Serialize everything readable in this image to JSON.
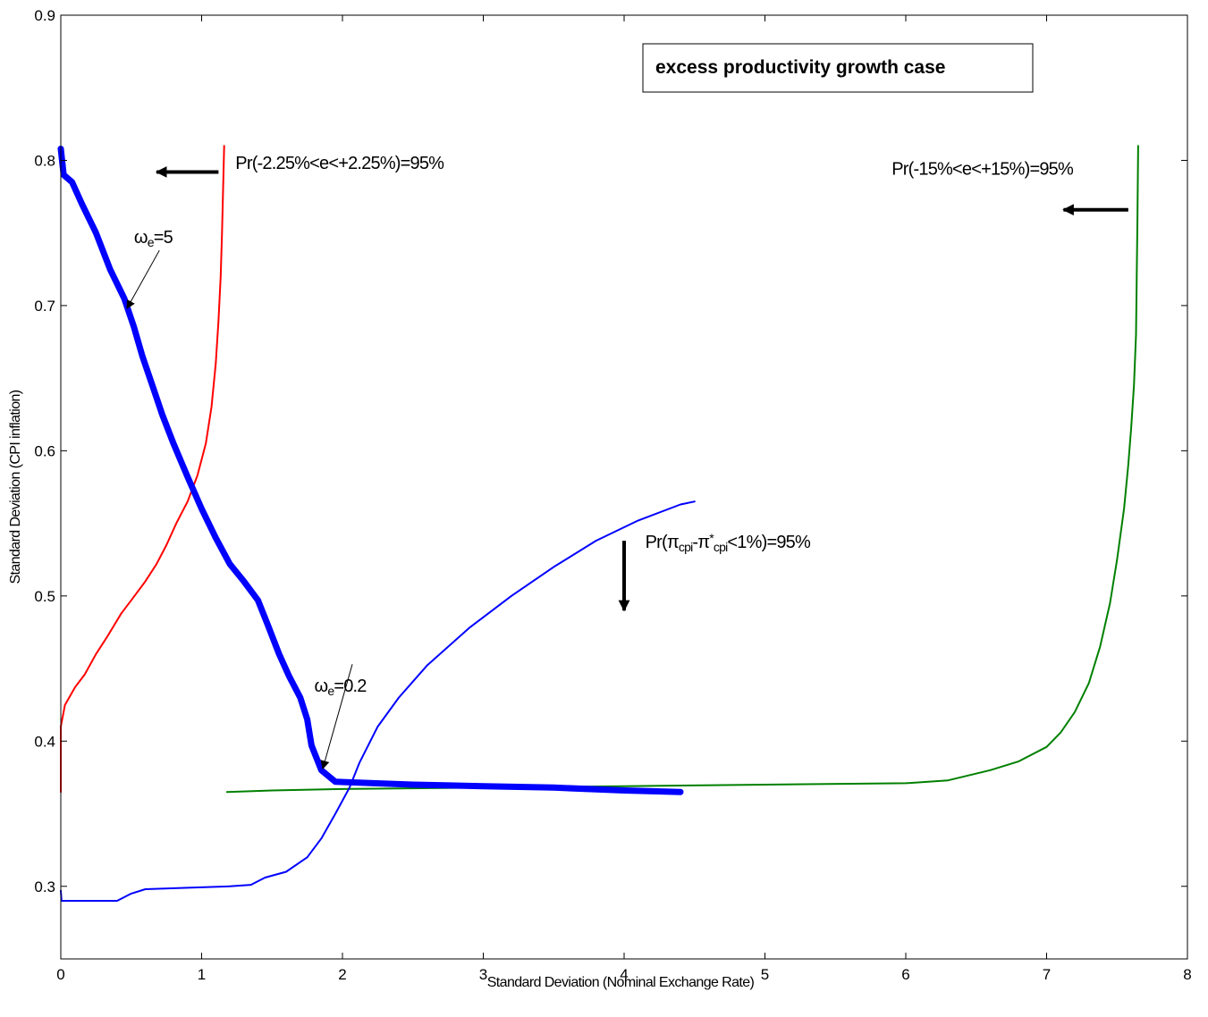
{
  "chart_data": {
    "type": "line",
    "title": "",
    "xlabel": "Standard Deviation (Nominal Exchange Rate)",
    "ylabel": "Standard Deviation (CPI inflation)",
    "xlim": [
      0,
      8
    ],
    "ylim": [
      0.25,
      0.9
    ],
    "xticks": [
      "0",
      "1",
      "2",
      "3",
      "4",
      "5",
      "6",
      "7",
      "8"
    ],
    "yticks": [
      "0.3",
      "0.4",
      "0.5",
      "0.6",
      "0.7",
      "0.8",
      "0.9"
    ],
    "grid": false,
    "legend_box_text": "excess productivity growth case",
    "colors": {
      "red": "#ff0000",
      "green": "#008000",
      "blue": "#0000ff",
      "black": "#000000"
    },
    "series": [
      {
        "color": "#ff0000",
        "width": "thin",
        "points": [
          [
            0,
            0.365
          ],
          [
            0,
            0.41
          ],
          [
            0.03,
            0.425
          ],
          [
            0.1,
            0.437
          ],
          [
            0.17,
            0.446
          ],
          [
            0.25,
            0.46
          ],
          [
            0.33,
            0.472
          ],
          [
            0.43,
            0.488
          ],
          [
            0.5,
            0.497
          ],
          [
            0.6,
            0.51
          ],
          [
            0.68,
            0.522
          ],
          [
            0.75,
            0.535
          ],
          [
            0.82,
            0.55
          ],
          [
            0.9,
            0.565
          ],
          [
            0.97,
            0.583
          ],
          [
            1.03,
            0.605
          ],
          [
            1.07,
            0.63
          ],
          [
            1.1,
            0.66
          ],
          [
            1.12,
            0.69
          ],
          [
            1.135,
            0.72
          ],
          [
            1.145,
            0.75
          ],
          [
            1.15,
            0.77
          ],
          [
            1.16,
            0.81
          ]
        ]
      },
      {
        "color": "#008000",
        "width": "thin",
        "points": [
          [
            1.18,
            0.365
          ],
          [
            1.5,
            0.366
          ],
          [
            2.0,
            0.367
          ],
          [
            3.0,
            0.368
          ],
          [
            4.0,
            0.369
          ],
          [
            5.0,
            0.37
          ],
          [
            6.0,
            0.371
          ],
          [
            6.3,
            0.373
          ],
          [
            6.6,
            0.38
          ],
          [
            6.8,
            0.386
          ],
          [
            7.0,
            0.396
          ],
          [
            7.1,
            0.406
          ],
          [
            7.2,
            0.42
          ],
          [
            7.3,
            0.44
          ],
          [
            7.38,
            0.465
          ],
          [
            7.45,
            0.495
          ],
          [
            7.5,
            0.525
          ],
          [
            7.55,
            0.56
          ],
          [
            7.58,
            0.59
          ],
          [
            7.6,
            0.615
          ],
          [
            7.62,
            0.645
          ],
          [
            7.635,
            0.68
          ],
          [
            7.64,
            0.72
          ],
          [
            7.645,
            0.76
          ],
          [
            7.65,
            0.81
          ]
        ]
      },
      {
        "color": "#0000ff",
        "width": "thin",
        "points": [
          [
            0,
            0.297
          ],
          [
            0.005,
            0.29
          ],
          [
            0.4,
            0.29
          ],
          [
            0.5,
            0.295
          ],
          [
            0.6,
            0.298
          ],
          [
            0.9,
            0.299
          ],
          [
            1.2,
            0.3
          ],
          [
            1.35,
            0.301
          ],
          [
            1.45,
            0.306
          ],
          [
            1.6,
            0.31
          ],
          [
            1.75,
            0.32
          ],
          [
            1.85,
            0.333
          ],
          [
            1.95,
            0.35
          ],
          [
            2.05,
            0.368
          ],
          [
            2.12,
            0.385
          ],
          [
            2.25,
            0.41
          ],
          [
            2.4,
            0.43
          ],
          [
            2.6,
            0.452
          ],
          [
            2.9,
            0.478
          ],
          [
            3.2,
            0.5
          ],
          [
            3.5,
            0.52
          ],
          [
            3.8,
            0.538
          ],
          [
            4.1,
            0.552
          ],
          [
            4.4,
            0.563
          ],
          [
            4.5,
            0.565
          ]
        ]
      },
      {
        "color": "#0000ff",
        "width": "thick",
        "points": [
          [
            0,
            0.808
          ],
          [
            0.02,
            0.79
          ],
          [
            0.08,
            0.785
          ],
          [
            0.15,
            0.77
          ],
          [
            0.25,
            0.75
          ],
          [
            0.35,
            0.725
          ],
          [
            0.45,
            0.705
          ],
          [
            0.52,
            0.685
          ],
          [
            0.58,
            0.665
          ],
          [
            0.65,
            0.645
          ],
          [
            0.72,
            0.625
          ],
          [
            0.8,
            0.605
          ],
          [
            0.9,
            0.582
          ],
          [
            1.0,
            0.56
          ],
          [
            1.1,
            0.54
          ],
          [
            1.2,
            0.522
          ],
          [
            1.3,
            0.51
          ],
          [
            1.4,
            0.497
          ],
          [
            1.47,
            0.48
          ],
          [
            1.55,
            0.46
          ],
          [
            1.62,
            0.445
          ],
          [
            1.7,
            0.43
          ],
          [
            1.75,
            0.415
          ],
          [
            1.78,
            0.397
          ],
          [
            1.85,
            0.38
          ],
          [
            1.95,
            0.372
          ],
          [
            2.5,
            0.37
          ],
          [
            3.0,
            0.369
          ],
          [
            3.5,
            0.368
          ],
          [
            4.0,
            0.366
          ],
          [
            4.4,
            0.365
          ]
        ]
      }
    ],
    "annotations": [
      {
        "label_main": "Pr(-2.25%<e<+2.25%)=95%",
        "x": 1.24,
        "y": 0.794
      },
      {
        "label_main": "Pr(-15%<e<+15%)=95%",
        "x": 5.9,
        "y": 0.79
      },
      {
        "label_omega": "ω",
        "label_sub": "e",
        "label_rest": "=5",
        "x": 0.52,
        "y": 0.743
      },
      {
        "label_omega": "ω",
        "label_sub": "e",
        "label_rest": "=0.2",
        "x": 1.8,
        "y": 0.434
      },
      {
        "label_pr": "Pr(",
        "label_pi1": "π",
        "label_sub1": "cpi",
        "label_dash": "-",
        "label_pi2": "π",
        "label_sup": "*",
        "label_sub2": "cpi",
        "label_end": "<1%)=95%",
        "x": 4.15,
        "y": 0.533
      }
    ],
    "arrows": [
      {
        "from": [
          1.12,
          0.792
        ],
        "to": [
          0.68,
          0.792
        ],
        "style": "bold"
      },
      {
        "from": [
          7.58,
          0.766
        ],
        "to": [
          7.12,
          0.766
        ],
        "style": "bold"
      },
      {
        "from": [
          4.0,
          0.538
        ],
        "to": [
          4.0,
          0.49
        ],
        "style": "bold"
      },
      {
        "from": [
          0.7,
          0.738
        ],
        "to": [
          0.47,
          0.698
        ],
        "style": "thin"
      },
      {
        "from": [
          2.07,
          0.453
        ],
        "to": [
          1.86,
          0.381
        ],
        "style": "thin"
      }
    ]
  }
}
